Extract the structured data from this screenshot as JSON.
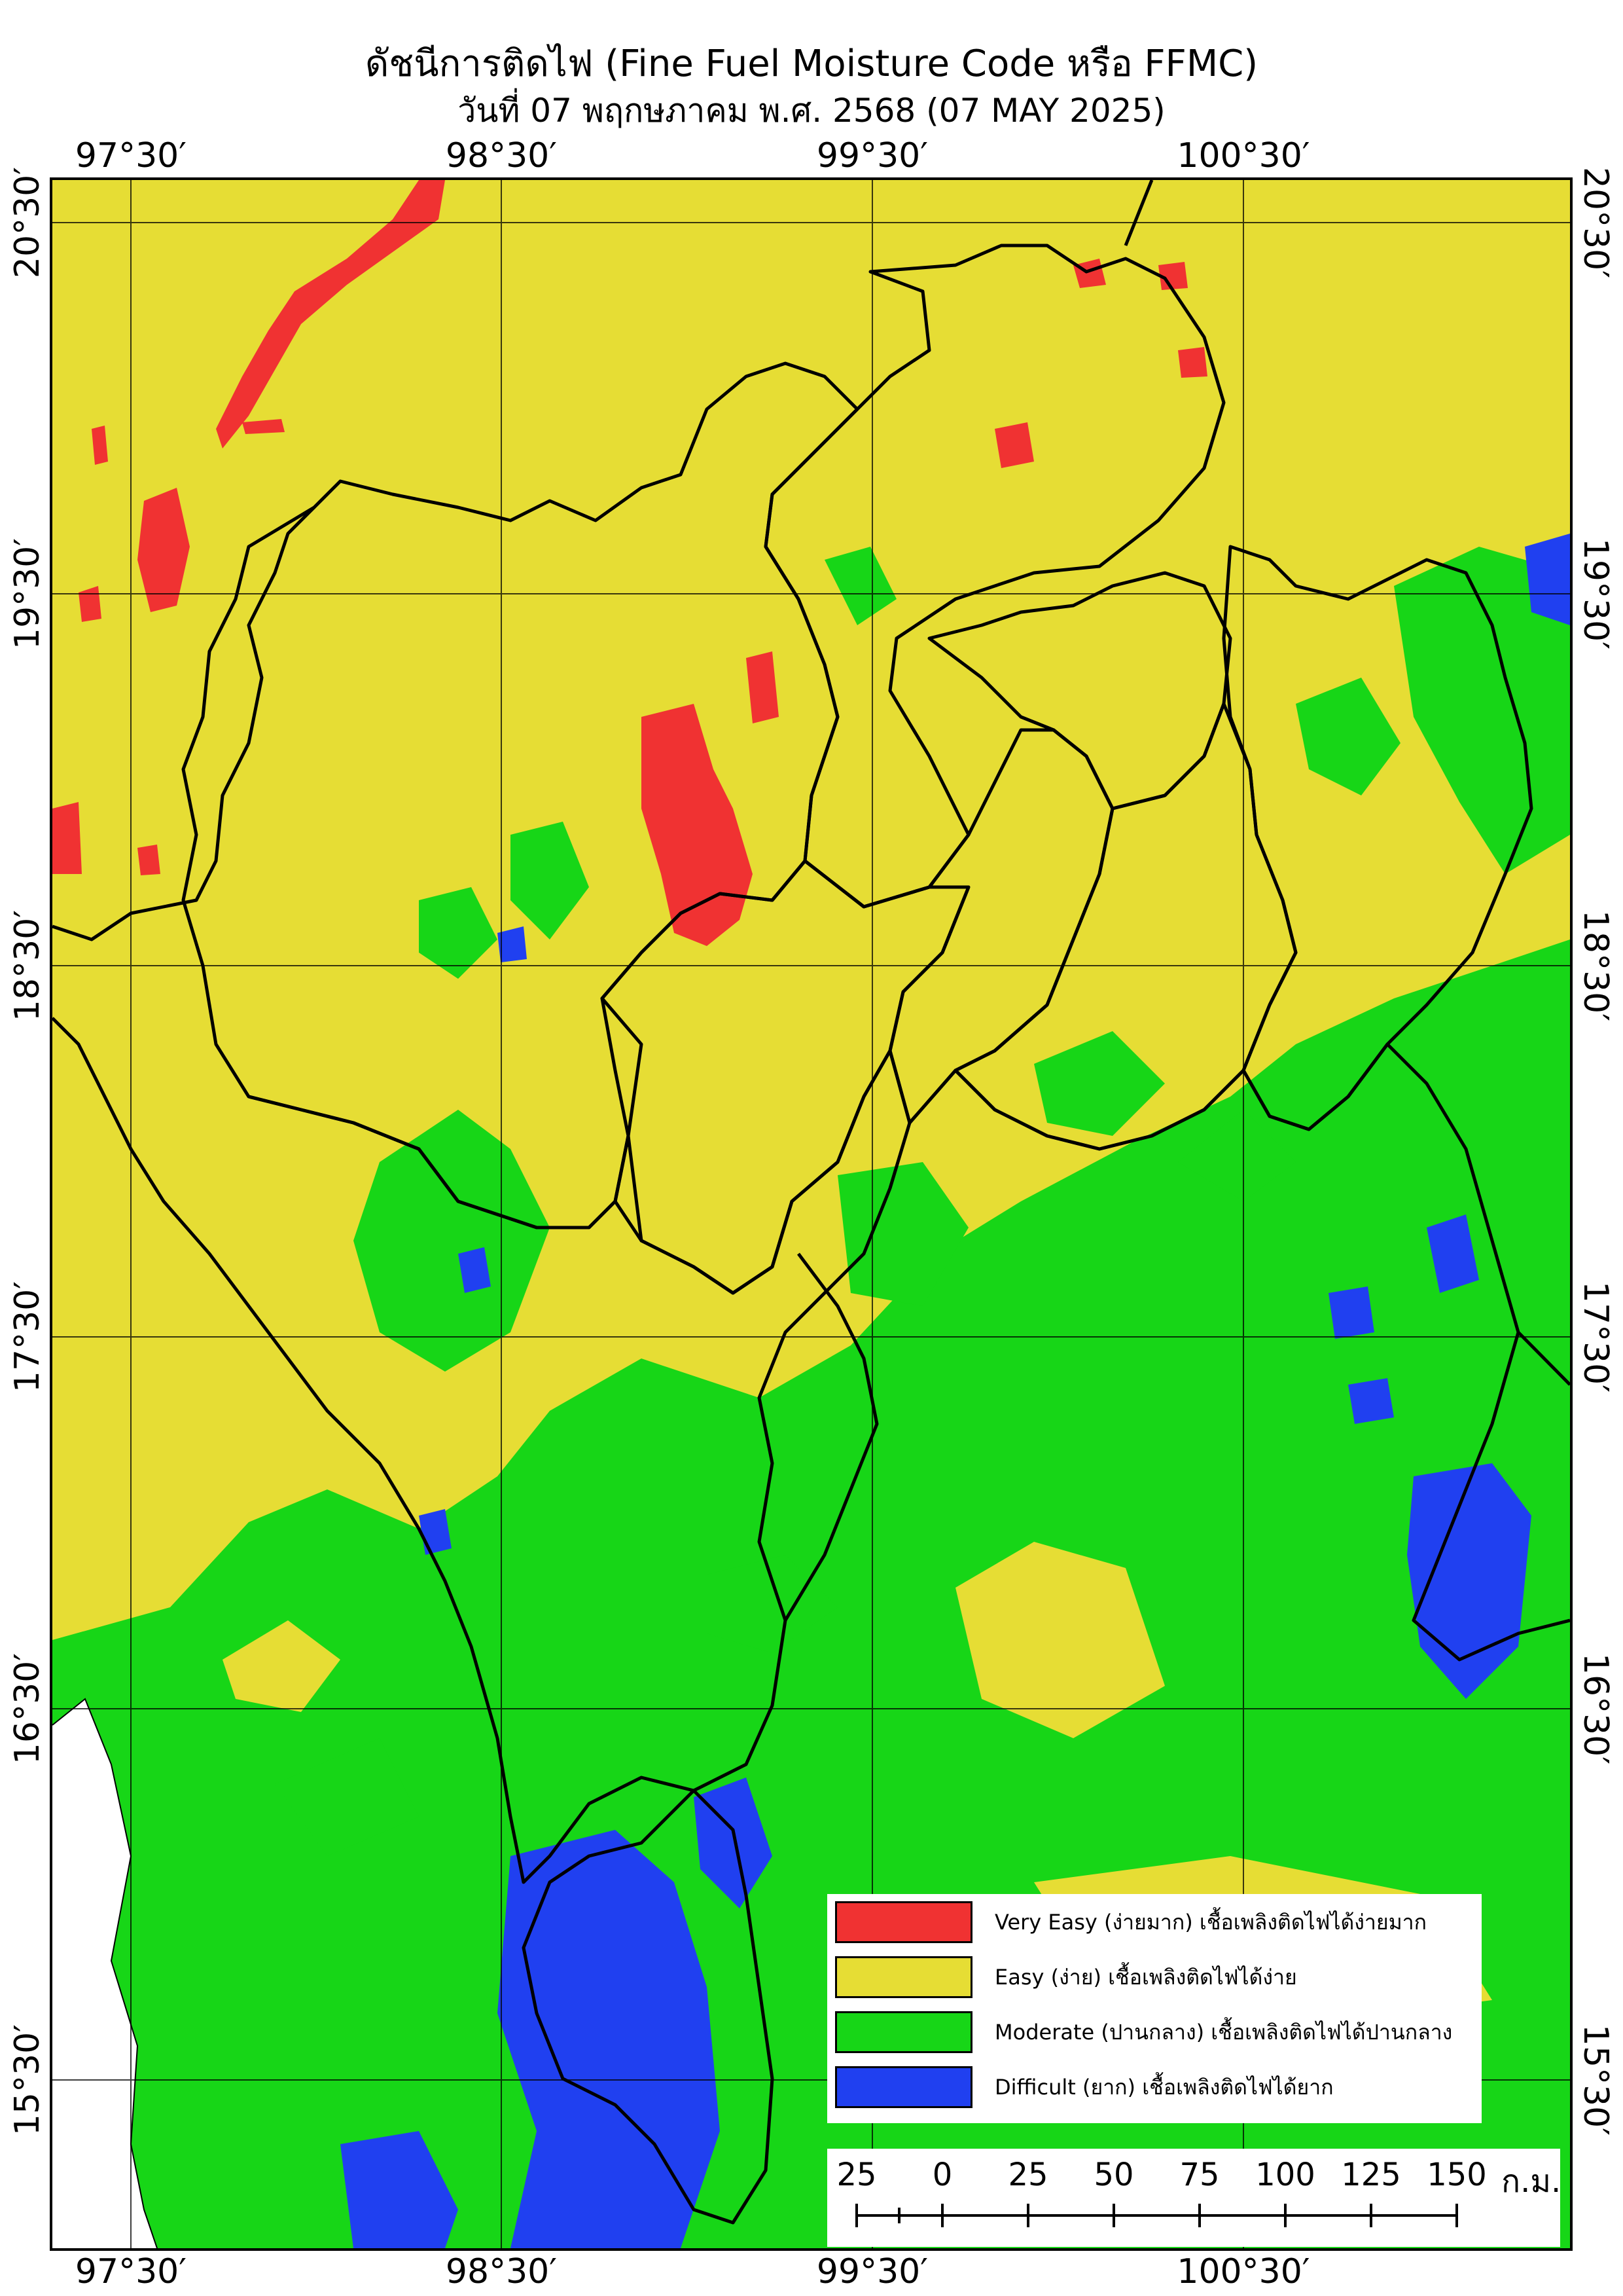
{
  "title": "ดัชนีการติดไฟ (Fine Fuel Moisture Code หรือ FFMC)",
  "subtitle": "วันที่ 07 พฤกษภาคม พ.ศ. 2568 (07 MAY 2025)",
  "axes": {
    "longitude_labels": [
      "97°30′",
      "98°30′",
      "99°30′",
      "100°30′"
    ],
    "latitude_labels": [
      "20°30′",
      "19°30′",
      "18°30′",
      "17°30′",
      "16°30′",
      "15°30′"
    ]
  },
  "legend": [
    {
      "label": "Very Easy (ง่ายมาก) เชื้อเพลิงติดไฟได้ง่ายมาก",
      "color": "#f03232"
    },
    {
      "label": "Easy (ง่าย) เชื้อเพลิงติดไฟได้ง่าย",
      "color": "#e6dd34"
    },
    {
      "label": "Moderate (ปานกลาง) เชื้อเพลิงติดไฟได้ปานกลาง",
      "color": "#17d617"
    },
    {
      "label": "Difficult (ยาก) เชื้อเพลิงติดไฟได้ยาก",
      "color": "#2040f0"
    }
  ],
  "scale_bar": {
    "ticks": [
      "25",
      "0",
      "25",
      "50",
      "75",
      "100",
      "125",
      "150"
    ],
    "unit": "ก.ม."
  }
}
